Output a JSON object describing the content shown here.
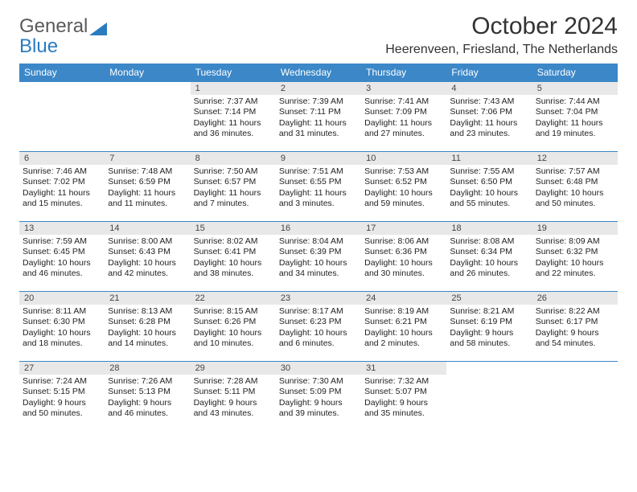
{
  "logo": {
    "text1": "General",
    "text2": "Blue"
  },
  "title": "October 2024",
  "location": "Heerenveen, Friesland, The Netherlands",
  "dayHeaders": [
    "Sunday",
    "Monday",
    "Tuesday",
    "Wednesday",
    "Thursday",
    "Friday",
    "Saturday"
  ],
  "colors": {
    "headerBg": "#3b87c8",
    "headerText": "#ffffff",
    "dayNumBg": "#e8e8e8",
    "cellBorder": "#3b87c8",
    "logoGray": "#5a5a5a",
    "logoBlue": "#2b7bbf"
  },
  "weeks": [
    [
      {
        "n": "",
        "lines": []
      },
      {
        "n": "",
        "lines": []
      },
      {
        "n": "1",
        "lines": [
          "Sunrise: 7:37 AM",
          "Sunset: 7:14 PM",
          "Daylight: 11 hours",
          "and 36 minutes."
        ]
      },
      {
        "n": "2",
        "lines": [
          "Sunrise: 7:39 AM",
          "Sunset: 7:11 PM",
          "Daylight: 11 hours",
          "and 31 minutes."
        ]
      },
      {
        "n": "3",
        "lines": [
          "Sunrise: 7:41 AM",
          "Sunset: 7:09 PM",
          "Daylight: 11 hours",
          "and 27 minutes."
        ]
      },
      {
        "n": "4",
        "lines": [
          "Sunrise: 7:43 AM",
          "Sunset: 7:06 PM",
          "Daylight: 11 hours",
          "and 23 minutes."
        ]
      },
      {
        "n": "5",
        "lines": [
          "Sunrise: 7:44 AM",
          "Sunset: 7:04 PM",
          "Daylight: 11 hours",
          "and 19 minutes."
        ]
      }
    ],
    [
      {
        "n": "6",
        "lines": [
          "Sunrise: 7:46 AM",
          "Sunset: 7:02 PM",
          "Daylight: 11 hours",
          "and 15 minutes."
        ]
      },
      {
        "n": "7",
        "lines": [
          "Sunrise: 7:48 AM",
          "Sunset: 6:59 PM",
          "Daylight: 11 hours",
          "and 11 minutes."
        ]
      },
      {
        "n": "8",
        "lines": [
          "Sunrise: 7:50 AM",
          "Sunset: 6:57 PM",
          "Daylight: 11 hours",
          "and 7 minutes."
        ]
      },
      {
        "n": "9",
        "lines": [
          "Sunrise: 7:51 AM",
          "Sunset: 6:55 PM",
          "Daylight: 11 hours",
          "and 3 minutes."
        ]
      },
      {
        "n": "10",
        "lines": [
          "Sunrise: 7:53 AM",
          "Sunset: 6:52 PM",
          "Daylight: 10 hours",
          "and 59 minutes."
        ]
      },
      {
        "n": "11",
        "lines": [
          "Sunrise: 7:55 AM",
          "Sunset: 6:50 PM",
          "Daylight: 10 hours",
          "and 55 minutes."
        ]
      },
      {
        "n": "12",
        "lines": [
          "Sunrise: 7:57 AM",
          "Sunset: 6:48 PM",
          "Daylight: 10 hours",
          "and 50 minutes."
        ]
      }
    ],
    [
      {
        "n": "13",
        "lines": [
          "Sunrise: 7:59 AM",
          "Sunset: 6:45 PM",
          "Daylight: 10 hours",
          "and 46 minutes."
        ]
      },
      {
        "n": "14",
        "lines": [
          "Sunrise: 8:00 AM",
          "Sunset: 6:43 PM",
          "Daylight: 10 hours",
          "and 42 minutes."
        ]
      },
      {
        "n": "15",
        "lines": [
          "Sunrise: 8:02 AM",
          "Sunset: 6:41 PM",
          "Daylight: 10 hours",
          "and 38 minutes."
        ]
      },
      {
        "n": "16",
        "lines": [
          "Sunrise: 8:04 AM",
          "Sunset: 6:39 PM",
          "Daylight: 10 hours",
          "and 34 minutes."
        ]
      },
      {
        "n": "17",
        "lines": [
          "Sunrise: 8:06 AM",
          "Sunset: 6:36 PM",
          "Daylight: 10 hours",
          "and 30 minutes."
        ]
      },
      {
        "n": "18",
        "lines": [
          "Sunrise: 8:08 AM",
          "Sunset: 6:34 PM",
          "Daylight: 10 hours",
          "and 26 minutes."
        ]
      },
      {
        "n": "19",
        "lines": [
          "Sunrise: 8:09 AM",
          "Sunset: 6:32 PM",
          "Daylight: 10 hours",
          "and 22 minutes."
        ]
      }
    ],
    [
      {
        "n": "20",
        "lines": [
          "Sunrise: 8:11 AM",
          "Sunset: 6:30 PM",
          "Daylight: 10 hours",
          "and 18 minutes."
        ]
      },
      {
        "n": "21",
        "lines": [
          "Sunrise: 8:13 AM",
          "Sunset: 6:28 PM",
          "Daylight: 10 hours",
          "and 14 minutes."
        ]
      },
      {
        "n": "22",
        "lines": [
          "Sunrise: 8:15 AM",
          "Sunset: 6:26 PM",
          "Daylight: 10 hours",
          "and 10 minutes."
        ]
      },
      {
        "n": "23",
        "lines": [
          "Sunrise: 8:17 AM",
          "Sunset: 6:23 PM",
          "Daylight: 10 hours",
          "and 6 minutes."
        ]
      },
      {
        "n": "24",
        "lines": [
          "Sunrise: 8:19 AM",
          "Sunset: 6:21 PM",
          "Daylight: 10 hours",
          "and 2 minutes."
        ]
      },
      {
        "n": "25",
        "lines": [
          "Sunrise: 8:21 AM",
          "Sunset: 6:19 PM",
          "Daylight: 9 hours",
          "and 58 minutes."
        ]
      },
      {
        "n": "26",
        "lines": [
          "Sunrise: 8:22 AM",
          "Sunset: 6:17 PM",
          "Daylight: 9 hours",
          "and 54 minutes."
        ]
      }
    ],
    [
      {
        "n": "27",
        "lines": [
          "Sunrise: 7:24 AM",
          "Sunset: 5:15 PM",
          "Daylight: 9 hours",
          "and 50 minutes."
        ]
      },
      {
        "n": "28",
        "lines": [
          "Sunrise: 7:26 AM",
          "Sunset: 5:13 PM",
          "Daylight: 9 hours",
          "and 46 minutes."
        ]
      },
      {
        "n": "29",
        "lines": [
          "Sunrise: 7:28 AM",
          "Sunset: 5:11 PM",
          "Daylight: 9 hours",
          "and 43 minutes."
        ]
      },
      {
        "n": "30",
        "lines": [
          "Sunrise: 7:30 AM",
          "Sunset: 5:09 PM",
          "Daylight: 9 hours",
          "and 39 minutes."
        ]
      },
      {
        "n": "31",
        "lines": [
          "Sunrise: 7:32 AM",
          "Sunset: 5:07 PM",
          "Daylight: 9 hours",
          "and 35 minutes."
        ]
      },
      {
        "n": "",
        "lines": []
      },
      {
        "n": "",
        "lines": []
      }
    ]
  ]
}
